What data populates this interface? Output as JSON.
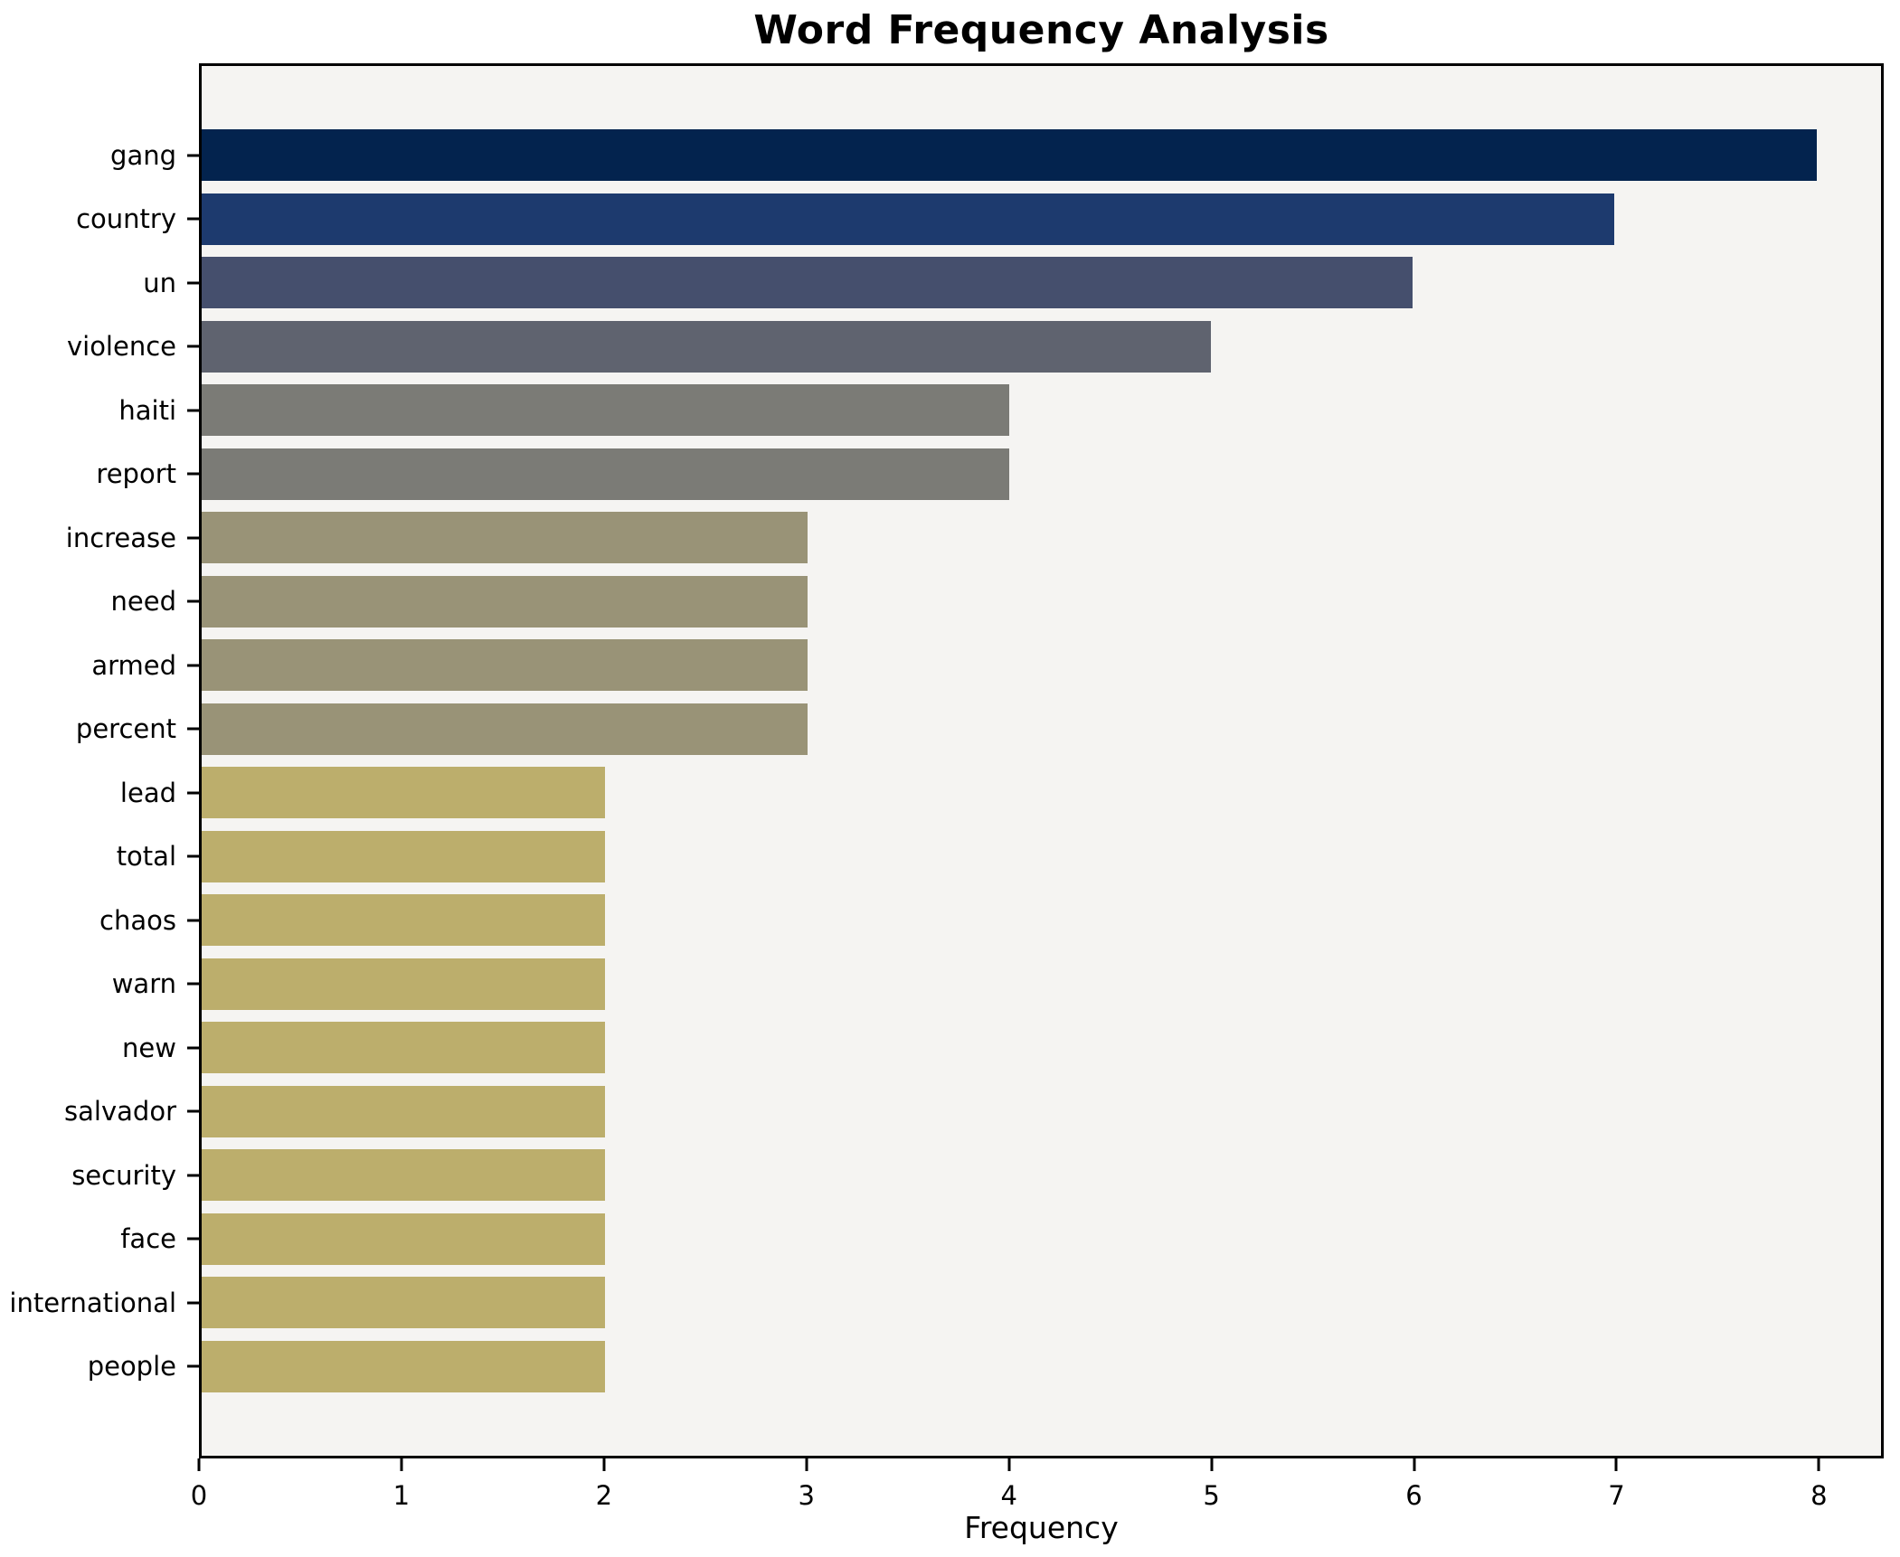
{
  "chart_data": {
    "type": "bar",
    "orientation": "horizontal",
    "title": "Word Frequency Analysis",
    "xlabel": "Frequency",
    "ylabel": "",
    "categories": [
      "gang",
      "country",
      "un",
      "violence",
      "haiti",
      "report",
      "increase",
      "need",
      "armed",
      "percent",
      "lead",
      "total",
      "chaos",
      "warn",
      "new",
      "salvador",
      "security",
      "face",
      "international",
      "people"
    ],
    "values": [
      8,
      7,
      6,
      5,
      4,
      4,
      3,
      3,
      3,
      3,
      2,
      2,
      2,
      2,
      2,
      2,
      2,
      2,
      2,
      2
    ],
    "bar_colors": [
      "#03234e",
      "#1d3a6e",
      "#454f6d",
      "#5f636f",
      "#7b7b76",
      "#7b7b76",
      "#999377",
      "#999377",
      "#999377",
      "#999377",
      "#bcae6c",
      "#bcae6c",
      "#bcae6c",
      "#bcae6c",
      "#bcae6c",
      "#bcae6c",
      "#bcae6c",
      "#bcae6c",
      "#bcae6c",
      "#bcae6c"
    ],
    "xticks": [
      0,
      1,
      2,
      3,
      4,
      5,
      6,
      7,
      8
    ],
    "xlim": [
      0,
      8.32
    ],
    "grid": false,
    "legend_position": "none",
    "plot_background": "#f5f4f2",
    "figure_background": "#ffffff",
    "spine_color": "#000000"
  }
}
